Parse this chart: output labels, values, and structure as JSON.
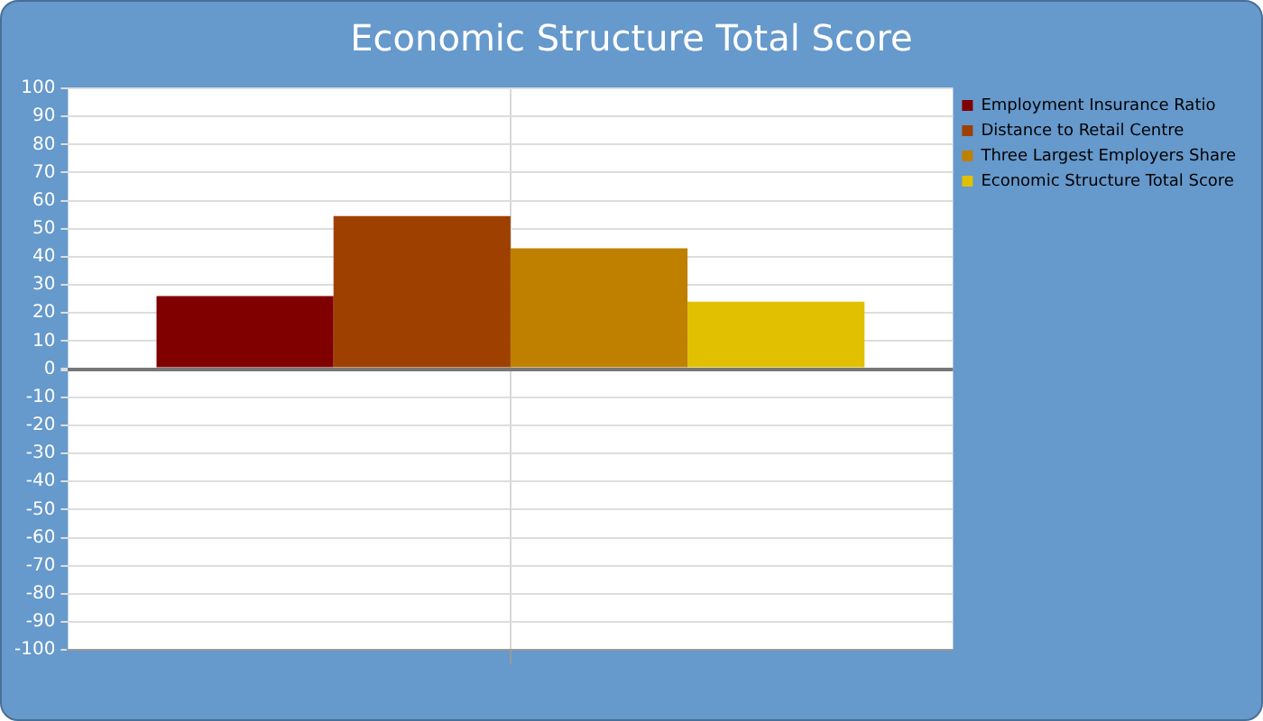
{
  "chart_data": {
    "type": "bar",
    "title": "Economic Structure Total Score",
    "categories": [
      null
    ],
    "series": [
      {
        "name": "Employment Insurance Ratio",
        "color": "#800000",
        "values": [
          26
        ]
      },
      {
        "name": "Distance to Retail Centre",
        "color": "#9e4000",
        "values": [
          54.5
        ]
      },
      {
        "name": "Three Largest Employers Share",
        "color": "#bf8000",
        "values": [
          43
        ]
      },
      {
        "name": "Economic Structure Total Score",
        "color": "#e0c000",
        "values": [
          24
        ]
      }
    ],
    "ylim": [
      -100,
      100
    ],
    "yticks": [
      -100,
      -90,
      -80,
      -70,
      -60,
      -50,
      -40,
      -30,
      -20,
      -10,
      0,
      10,
      20,
      30,
      40,
      50,
      60,
      70,
      80,
      90,
      100
    ],
    "grid": true,
    "legend": "top right"
  }
}
